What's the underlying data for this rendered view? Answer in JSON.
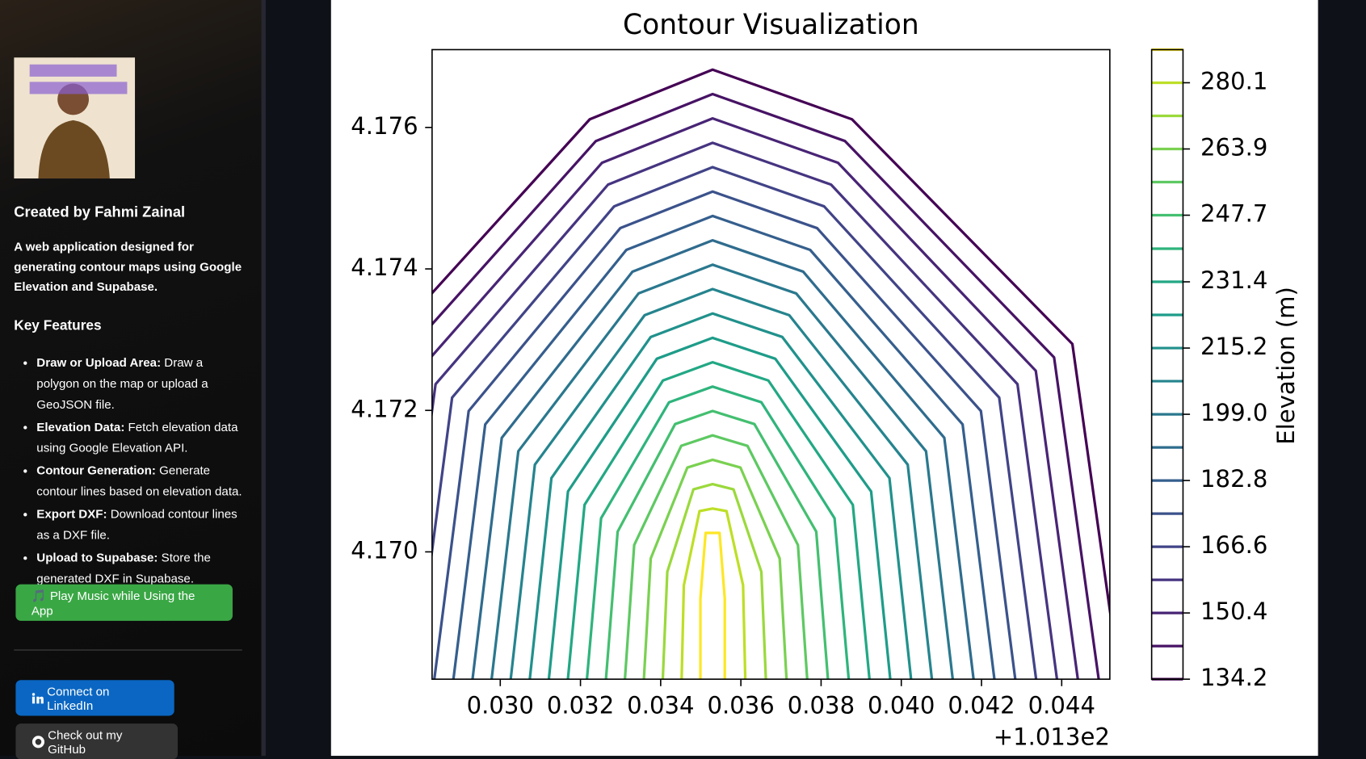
{
  "sidebar": {
    "title": "Created by Fahmi Zainal",
    "description": "A web application designed for generating contour maps using Google Elevation and Supabase.",
    "features_heading": "Key Features",
    "features": [
      {
        "name": "Draw or Upload Area:",
        "text": "Draw a polygon on the map or upload a GeoJSON file."
      },
      {
        "name": "Elevation Data:",
        "text": "Fetch elevation data using Google Elevation API."
      },
      {
        "name": "Contour Generation:",
        "text": "Generate contour lines based on elevation data."
      },
      {
        "name": "Export DXF:",
        "text": "Download contour lines as a DXF file."
      },
      {
        "name": "Upload to Supabase:",
        "text": "Store the generated DXF in Supabase."
      }
    ],
    "music_button": "🎵 Play Music while Using the App",
    "linkedin_button": "Connect on LinkedIn",
    "github_button": "Check out my GitHub"
  },
  "chart_data": {
    "type": "contour",
    "title": "Contour Visualization",
    "colorbar_label": "Elevation (m)",
    "x_offset_label": "+1.013e2",
    "xlim": [
      0.0283,
      0.0452
    ],
    "ylim": [
      4.1682,
      4.1771
    ],
    "xticks": [
      {
        "value": 0.03,
        "label": "0.030"
      },
      {
        "value": 0.032,
        "label": "0.032"
      },
      {
        "value": 0.034,
        "label": "0.034"
      },
      {
        "value": 0.036,
        "label": "0.036"
      },
      {
        "value": 0.038,
        "label": "0.038"
      },
      {
        "value": 0.04,
        "label": "0.040"
      },
      {
        "value": 0.042,
        "label": "0.042"
      },
      {
        "value": 0.044,
        "label": "0.044"
      }
    ],
    "yticks": [
      {
        "value": 4.17,
        "label": "4.170"
      },
      {
        "value": 4.172,
        "label": "4.172"
      },
      {
        "value": 4.174,
        "label": "4.174"
      },
      {
        "value": 4.176,
        "label": "4.176"
      }
    ],
    "levels": [
      134.2,
      142.3,
      150.4,
      158.5,
      166.6,
      174.7,
      182.8,
      190.9,
      199.0,
      207.1,
      215.2,
      223.3,
      231.4,
      239.5,
      247.7,
      255.8,
      263.9,
      272.0,
      280.1,
      288.2
    ],
    "colors": [
      "#440154",
      "#471365",
      "#482475",
      "#463480",
      "#414487",
      "#3b528b",
      "#355f8d",
      "#2f6c8e",
      "#2a788e",
      "#25848e",
      "#21918c",
      "#1e9c89",
      "#22a884",
      "#2fb47c",
      "#44bf70",
      "#5ec962",
      "#7ad151",
      "#9bd93c",
      "#bddf26",
      "#fde725"
    ],
    "clim": [
      134.2,
      288.2
    ],
    "cticks": [
      134.2,
      150.4,
      166.6,
      182.8,
      {
        "value": 199.0,
        "label": "199.0"
      },
      215.2,
      231.4,
      247.7,
      263.9,
      280.1
    ]
  }
}
